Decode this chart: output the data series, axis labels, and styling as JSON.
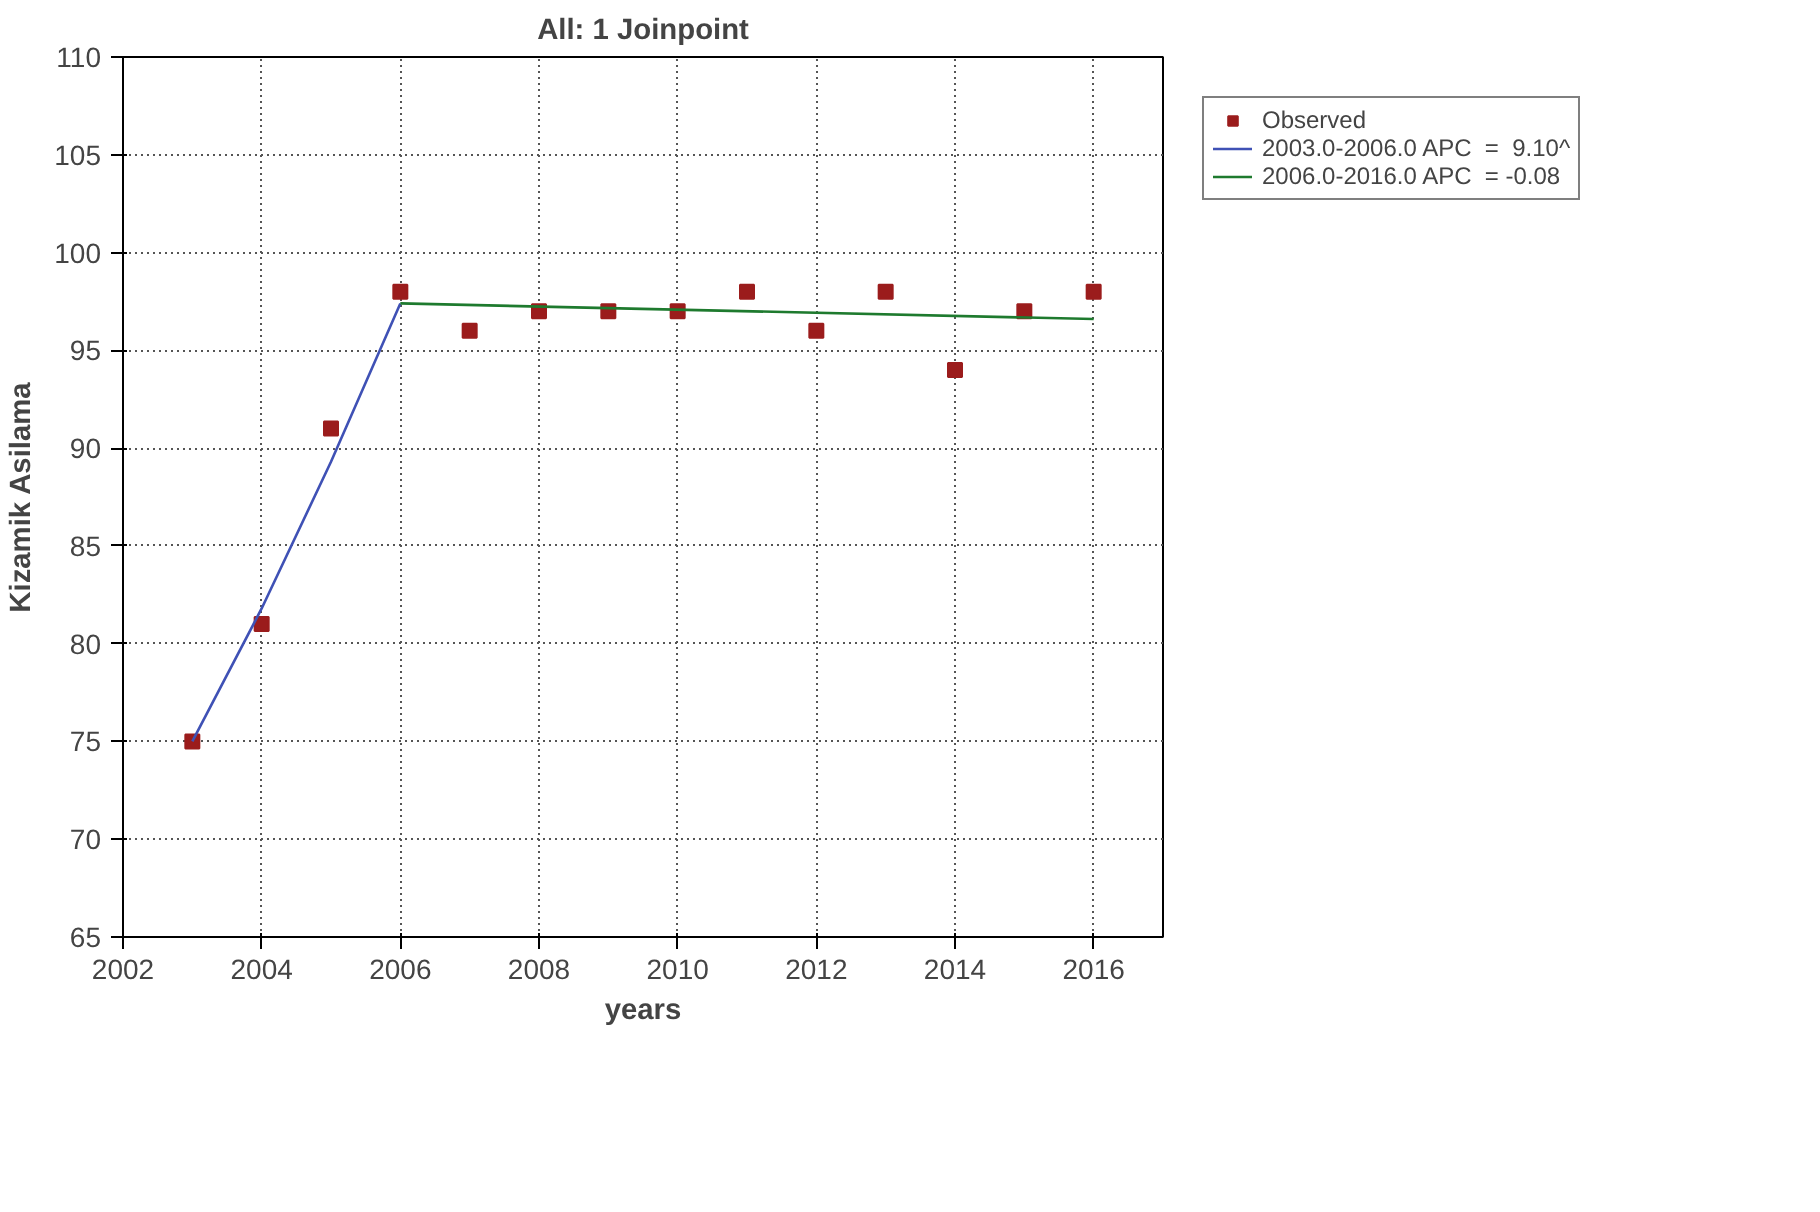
{
  "chart_data": {
    "type": "scatter",
    "title": "All: 1 Joinpoint",
    "xlabel": "years",
    "ylabel": "Kizamik Asilama",
    "xlim": [
      2002,
      2017
    ],
    "xticks": [
      2002,
      2004,
      2006,
      2008,
      2010,
      2012,
      2014,
      2016
    ],
    "ylim": [
      65,
      110
    ],
    "yticks": [
      65,
      70,
      75,
      80,
      85,
      90,
      95,
      100,
      105,
      110
    ],
    "grid": true,
    "legend": "top right",
    "series": [
      {
        "name": "Observed",
        "marker": "square",
        "color": "#9b1c1c",
        "x": [
          2003,
          2004,
          2005,
          2006,
          2007,
          2008,
          2009,
          2010,
          2011,
          2012,
          2013,
          2014,
          2015,
          2016
        ],
        "values": [
          75,
          81,
          91,
          98,
          96,
          97,
          97,
          97,
          98,
          96,
          98,
          94,
          97,
          98
        ]
      },
      {
        "name": "2003.0-2006.0 APC  =  9.10^",
        "type": "line",
        "marker": "none",
        "color": "#3f51b5",
        "x": [
          2003,
          2004,
          2005,
          2006
        ],
        "values": [
          75,
          81.8,
          89.3,
          97.4
        ]
      },
      {
        "name": "2006.0-2016.0 APC  = -0.08",
        "type": "line",
        "marker": "none",
        "color": "#1e7a2e",
        "x": [
          2006,
          2016
        ],
        "values": [
          97.4,
          96.6
        ]
      }
    ]
  }
}
